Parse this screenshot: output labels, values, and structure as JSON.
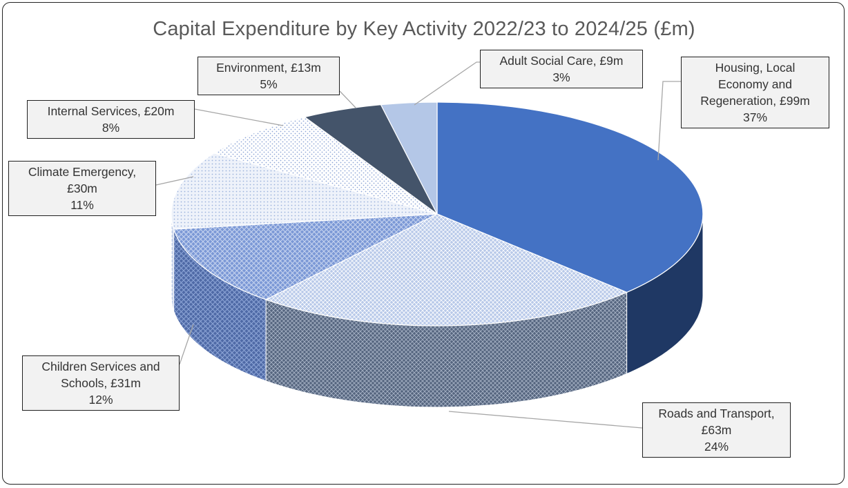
{
  "chart_data": {
    "type": "pie",
    "title": "Capital Expenditure by Key Activity 2022/23 to 2024/25 (£m)",
    "slices": [
      {
        "name": "Housing, Local Economy and Regeneration",
        "value": 99,
        "value_label": "£99m",
        "percent": "37%",
        "color": "#4472c4"
      },
      {
        "name": "Roads and Transport",
        "value": 63,
        "value_label": "£63m",
        "percent": "24%",
        "color": "#8faadc"
      },
      {
        "name": "Children Services and Schools",
        "value": 31,
        "value_label": "£31m",
        "percent": "12%",
        "color": "#6f8fcf"
      },
      {
        "name": "Climate Emergency",
        "value": 30,
        "value_label": "£30m",
        "percent": "11%",
        "color": "#b4c7e7"
      },
      {
        "name": "Internal Services",
        "value": 20,
        "value_label": "£20m",
        "percent": "8%",
        "color": "#dae3f3"
      },
      {
        "name": "Environment",
        "value": 13,
        "value_label": "£13m",
        "percent": "5%",
        "color": "#44546a"
      },
      {
        "name": "Adult Social Care",
        "value": 9,
        "value_label": "£9m",
        "percent": "3%",
        "color": "#a9bfe3"
      }
    ]
  }
}
